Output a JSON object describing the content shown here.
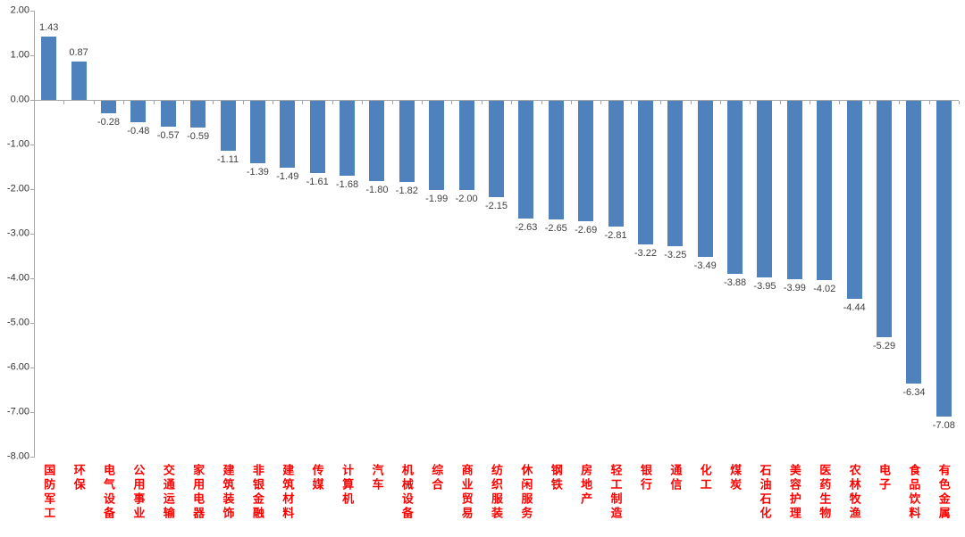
{
  "chart_data": {
    "type": "bar",
    "title": "",
    "xlabel": "",
    "ylabel": "",
    "categories": [
      "国防军工",
      "环保",
      "电气设备",
      "公用事业",
      "交通运输",
      "家用电器",
      "建筑装饰",
      "非银金融",
      "建筑材料",
      "传媒",
      "计算机",
      "汽车",
      "机械设备",
      "综合",
      "商业贸易",
      "纺织服装",
      "休闲服务",
      "钢铁",
      "房地产",
      "轻工制造",
      "银行",
      "通信",
      "化工",
      "煤炭",
      "石油石化",
      "美容护理",
      "医药生物",
      "农林牧渔",
      "电子",
      "食品饮料",
      "有色金属"
    ],
    "values": [
      1.43,
      0.87,
      -0.28,
      -0.48,
      -0.57,
      -0.59,
      -1.11,
      -1.39,
      -1.49,
      -1.61,
      -1.68,
      -1.8,
      -1.82,
      -1.99,
      -2.0,
      -2.15,
      -2.63,
      -2.65,
      -2.69,
      -2.81,
      -3.22,
      -3.25,
      -3.49,
      -3.88,
      -3.95,
      -3.99,
      -4.02,
      -4.44,
      -5.29,
      -6.34,
      -7.08
    ],
    "value_labels": [
      "1.43",
      "0.87",
      "-0.28",
      "-0.48",
      "-0.57",
      "-0.59",
      "-1.11",
      "-1.39",
      "-1.49",
      "-1.61",
      "-1.68",
      "-1.80",
      "-1.82",
      "-1.99",
      "-2.00",
      "-2.15",
      "-2.63",
      "-2.65",
      "-2.69",
      "-2.81",
      "-3.22",
      "-3.25",
      "-3.49",
      "-3.88",
      "-3.95",
      "-3.99",
      "-4.02",
      "-4.44",
      "-5.29",
      "-6.34",
      "-7.08"
    ],
    "ylim": [
      -8,
      2
    ],
    "ytick_labels": [
      "2.00",
      "1.00",
      "0.00",
      "-1.00",
      "-2.00",
      "-3.00",
      "-4.00",
      "-5.00",
      "-6.00",
      "-7.00",
      "-8.00"
    ],
    "ytick_values": [
      2,
      1,
      0,
      -1,
      -2,
      -3,
      -4,
      -5,
      -6,
      -7,
      -8
    ],
    "grid": false,
    "legend": "none",
    "colors": {
      "bar": "#4F81BD",
      "value_label": "#404040",
      "category_label": "#FF0000",
      "axis_line": "#A6A6A6",
      "axis_tick_label": "#333333",
      "background": "#FFFFFF"
    }
  }
}
